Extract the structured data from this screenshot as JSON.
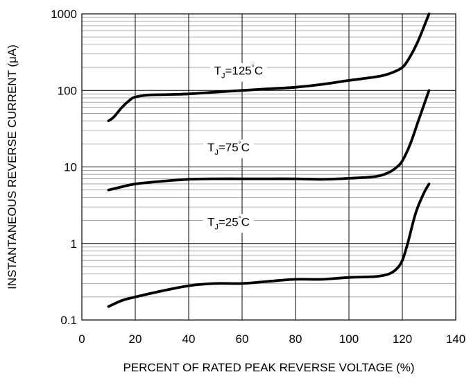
{
  "chart_data": {
    "type": "line",
    "title": "",
    "xlabel": "PERCENT OF RATED PEAK REVERSE VOLTAGE (%)",
    "ylabel": "INSTANTANEOUS REVERSE CURRENT (μA)",
    "x_scale": "linear",
    "y_scale": "log",
    "xlim": [
      0,
      140
    ],
    "ylim": [
      0.1,
      1000
    ],
    "x_ticks": [
      "0",
      "20",
      "40",
      "60",
      "80",
      "100",
      "120",
      "140"
    ],
    "y_ticks": [
      "0.1",
      "1",
      "10",
      "100",
      "1000"
    ],
    "grid": true,
    "series": [
      {
        "name": "TJ=125°C",
        "label": {
          "main": "T",
          "sub": "J",
          "rest": "=125",
          "deg": "°",
          "unit": "C"
        },
        "x": [
          10,
          12,
          15,
          18,
          20,
          25,
          30,
          40,
          50,
          60,
          70,
          80,
          90,
          100,
          110,
          115,
          120,
          123,
          126,
          130
        ],
        "y": [
          40,
          45,
          60,
          75,
          82,
          87,
          88,
          90,
          95,
          100,
          105,
          110,
          120,
          135,
          150,
          165,
          200,
          280,
          450,
          1000
        ]
      },
      {
        "name": "TJ=75°C",
        "label": {
          "main": "T",
          "sub": "J",
          "rest": "=75",
          "deg": "°",
          "unit": "C"
        },
        "x": [
          10,
          15,
          20,
          30,
          40,
          50,
          60,
          70,
          80,
          90,
          100,
          110,
          115,
          118,
          120,
          123,
          126,
          130
        ],
        "y": [
          5,
          5.5,
          6,
          6.5,
          6.9,
          7,
          7,
          7,
          7,
          6.9,
          7.1,
          7.5,
          8.5,
          10,
          12,
          20,
          40,
          100
        ]
      },
      {
        "name": "TJ=25°C",
        "label": {
          "main": "T",
          "sub": "J",
          "rest": "=25",
          "deg": "°",
          "unit": "C"
        },
        "x": [
          10,
          15,
          20,
          30,
          40,
          50,
          60,
          70,
          80,
          90,
          100,
          110,
          115,
          118,
          120,
          122,
          125,
          128,
          130
        ],
        "y": [
          0.15,
          0.18,
          0.2,
          0.24,
          0.28,
          0.3,
          0.3,
          0.32,
          0.34,
          0.34,
          0.36,
          0.37,
          0.4,
          0.47,
          0.6,
          1,
          2.5,
          4.5,
          6
        ]
      }
    ],
    "line_color": "#000000"
  }
}
